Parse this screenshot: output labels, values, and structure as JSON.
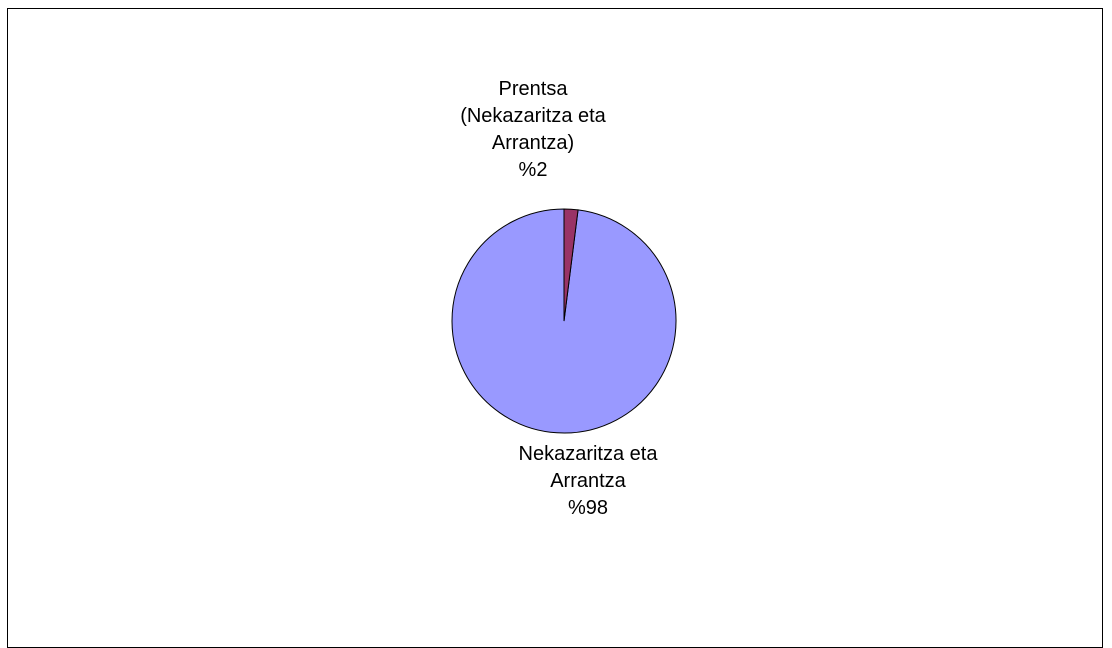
{
  "chart_data": {
    "type": "pie",
    "slices": [
      {
        "label_lines": [
          "Nekazaritza eta",
          "Arrantza"
        ],
        "percent_label": "%98",
        "value": 98,
        "color": "#9999ff"
      },
      {
        "label_lines": [
          "Prentsa",
          "(Nekazaritza eta",
          "Arrantza)"
        ],
        "percent_label": "%2",
        "value": 2,
        "color": "#993366"
      }
    ],
    "start": "12 o'clock",
    "direction": "counter-clockwise"
  }
}
